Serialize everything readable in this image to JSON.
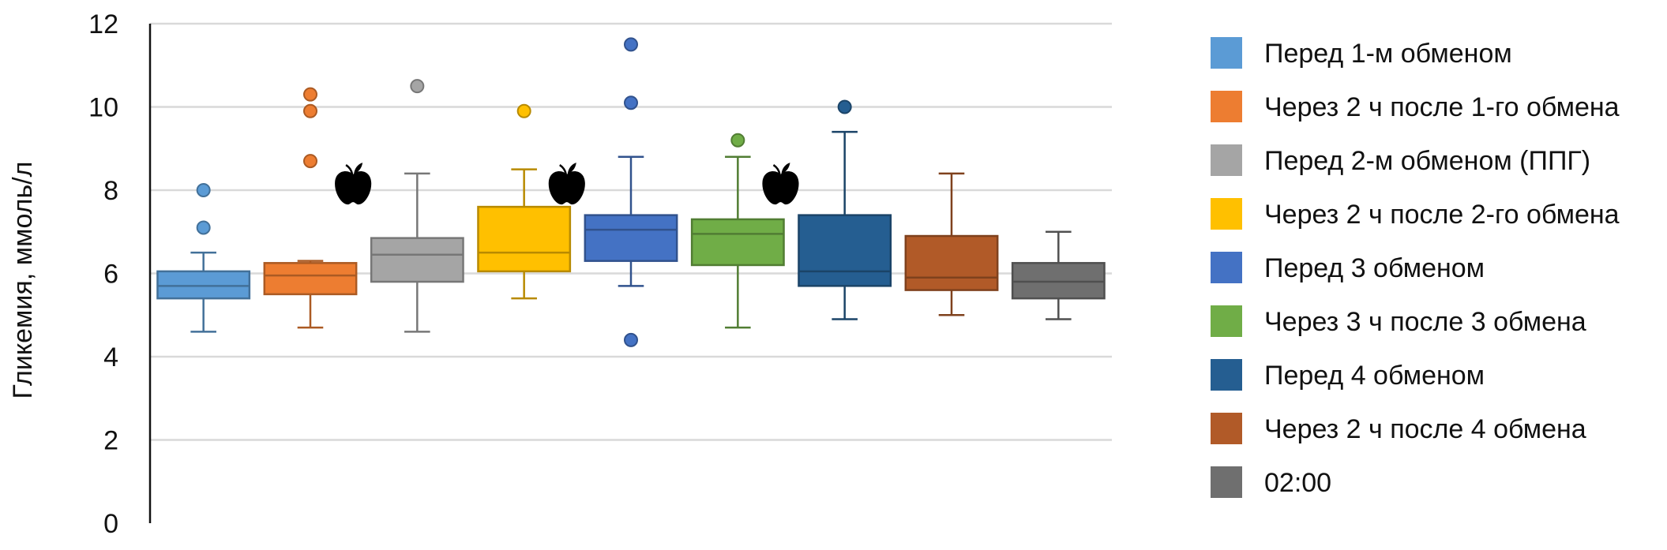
{
  "chart_data": {
    "type": "box",
    "ylabel": "Гликемия, ммоль/л",
    "ylim": [
      0,
      12
    ],
    "yticks": [
      "0",
      "2",
      "4",
      "6",
      "8",
      "10",
      "12"
    ],
    "grid": true,
    "legend_position": "right",
    "series": [
      {
        "name": "Перед 1-м обменом",
        "color": "#5b9bd5",
        "whisker_low": 4.6,
        "q1": 5.4,
        "median": 5.7,
        "q3": 6.05,
        "whisker_high": 6.5,
        "outliers": [
          7.1,
          8.0
        ],
        "marker": false
      },
      {
        "name": "Через 2 ч после 1-го обмена",
        "color": "#ed7d31",
        "whisker_low": 4.7,
        "q1": 5.5,
        "median": 5.95,
        "q3": 6.25,
        "whisker_high": 6.3,
        "outliers": [
          8.7,
          9.9,
          10.3
        ],
        "marker": false
      },
      {
        "name": "Перед 2-м обменом (ППГ)",
        "color": "#a5a5a5",
        "whisker_low": 4.6,
        "q1": 5.8,
        "median": 6.45,
        "q3": 6.85,
        "whisker_high": 8.4,
        "outliers": [
          10.5
        ],
        "marker": true
      },
      {
        "name": "Через 2 ч после 2-го обмена",
        "color": "#ffc000",
        "whisker_low": 5.4,
        "q1": 6.05,
        "median": 6.5,
        "q3": 7.6,
        "whisker_high": 8.5,
        "outliers": [
          9.9
        ],
        "marker": false
      },
      {
        "name": "Перед 3 обменом",
        "color": "#4472c4",
        "whisker_low": 5.7,
        "q1": 6.3,
        "median": 7.05,
        "q3": 7.4,
        "whisker_high": 8.8,
        "outliers": [
          4.4,
          10.1,
          11.5
        ],
        "marker": true
      },
      {
        "name": "Через 3 ч после 3 обмена",
        "color": "#70ad47",
        "whisker_low": 4.7,
        "q1": 6.2,
        "median": 6.95,
        "q3": 7.3,
        "whisker_high": 8.8,
        "outliers": [
          9.2
        ],
        "marker": false
      },
      {
        "name": "Перед 4 обменом",
        "color": "#255e91",
        "whisker_low": 4.9,
        "q1": 5.7,
        "median": 6.05,
        "q3": 7.4,
        "whisker_high": 9.4,
        "outliers": [
          10.0
        ],
        "marker": true
      },
      {
        "name": "Через 2 ч после 4 обмена",
        "color": "#b15a28",
        "whisker_low": 5.0,
        "q1": 5.6,
        "median": 5.9,
        "q3": 6.9,
        "whisker_high": 8.4,
        "outliers": [],
        "marker": false
      },
      {
        "name": "02:00",
        "color": "#6f6f6f",
        "whisker_low": 4.9,
        "q1": 5.4,
        "median": 5.8,
        "q3": 6.25,
        "whisker_high": 7.0,
        "outliers": [],
        "marker": false
      }
    ]
  }
}
